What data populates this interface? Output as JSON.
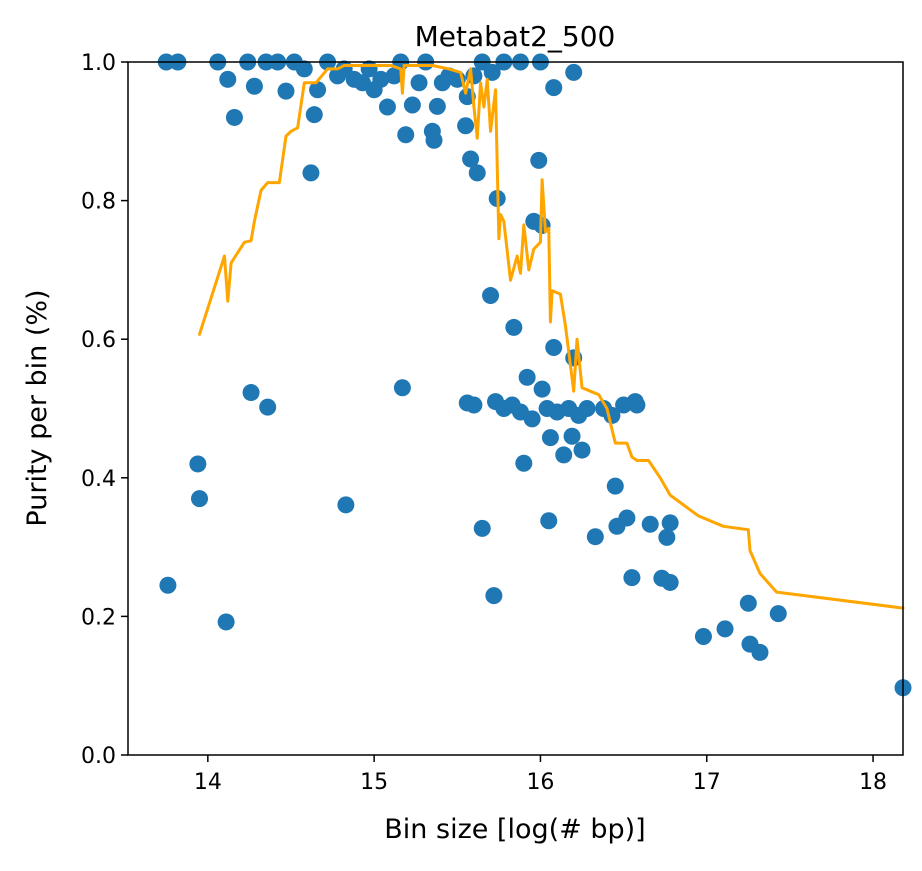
{
  "chart_data": {
    "type": "scatter",
    "title": "Metabat2_500",
    "xlabel": "Bin size [log(# bp)]",
    "ylabel": "Purity per bin (%)",
    "xlim": [
      13.52,
      18.18
    ],
    "ylim": [
      0.0,
      1.0
    ],
    "xticks": [
      14,
      15,
      16,
      17,
      18
    ],
    "xtick_labels": [
      "14",
      "15",
      "16",
      "17",
      "18"
    ],
    "yticks": [
      0.0,
      0.2,
      0.4,
      0.6,
      0.8,
      1.0
    ],
    "ytick_labels": [
      "0.0",
      "0.2",
      "0.4",
      "0.6",
      "0.8",
      "1.0"
    ],
    "grid": false,
    "legend": "none",
    "colors": {
      "points": "#1f77b4",
      "line": "#ffa500"
    },
    "series": [
      {
        "type": "scatter",
        "points": [
          {
            "x": 13.75,
            "y": 1.0
          },
          {
            "x": 13.82,
            "y": 1.0
          },
          {
            "x": 14.06,
            "y": 1.0
          },
          {
            "x": 14.12,
            "y": 0.975
          },
          {
            "x": 14.16,
            "y": 0.92
          },
          {
            "x": 14.24,
            "y": 1.0
          },
          {
            "x": 14.28,
            "y": 0.965
          },
          {
            "x": 14.35,
            "y": 1.0
          },
          {
            "x": 14.42,
            "y": 1.0
          },
          {
            "x": 14.47,
            "y": 0.958
          },
          {
            "x": 14.52,
            "y": 1.0
          },
          {
            "x": 14.58,
            "y": 0.99
          },
          {
            "x": 14.62,
            "y": 0.84
          },
          {
            "x": 14.64,
            "y": 0.924
          },
          {
            "x": 14.66,
            "y": 0.96
          },
          {
            "x": 14.72,
            "y": 1.0
          },
          {
            "x": 14.78,
            "y": 0.98
          },
          {
            "x": 14.82,
            "y": 0.99
          },
          {
            "x": 14.88,
            "y": 0.975
          },
          {
            "x": 14.93,
            "y": 0.97
          },
          {
            "x": 14.97,
            "y": 0.99
          },
          {
            "x": 15.0,
            "y": 0.96
          },
          {
            "x": 15.04,
            "y": 0.975
          },
          {
            "x": 15.08,
            "y": 0.935
          },
          {
            "x": 15.12,
            "y": 0.98
          },
          {
            "x": 15.16,
            "y": 1.0
          },
          {
            "x": 15.19,
            "y": 0.895
          },
          {
            "x": 15.23,
            "y": 0.938
          },
          {
            "x": 15.27,
            "y": 0.97
          },
          {
            "x": 15.31,
            "y": 1.0
          },
          {
            "x": 15.35,
            "y": 0.9
          },
          {
            "x": 15.36,
            "y": 0.887
          },
          {
            "x": 15.38,
            "y": 0.936
          },
          {
            "x": 15.41,
            "y": 0.97
          },
          {
            "x": 15.45,
            "y": 0.98
          },
          {
            "x": 15.5,
            "y": 0.975
          },
          {
            "x": 15.55,
            "y": 0.908
          },
          {
            "x": 15.56,
            "y": 0.95
          },
          {
            "x": 15.58,
            "y": 0.86
          },
          {
            "x": 15.62,
            "y": 0.84
          },
          {
            "x": 15.6,
            "y": 0.98
          },
          {
            "x": 15.65,
            "y": 1.0
          },
          {
            "x": 15.71,
            "y": 0.985
          },
          {
            "x": 15.74,
            "y": 0.803
          },
          {
            "x": 15.78,
            "y": 1.0
          },
          {
            "x": 15.88,
            "y": 1.0
          },
          {
            "x": 15.96,
            "y": 0.77
          },
          {
            "x": 15.99,
            "y": 0.858
          },
          {
            "x": 16.01,
            "y": 0.764
          },
          {
            "x": 16.0,
            "y": 1.0
          },
          {
            "x": 16.08,
            "y": 0.963
          },
          {
            "x": 16.2,
            "y": 0.985
          },
          {
            "x": 15.7,
            "y": 0.663
          },
          {
            "x": 15.84,
            "y": 0.617
          },
          {
            "x": 16.08,
            "y": 0.588
          },
          {
            "x": 16.2,
            "y": 0.573
          },
          {
            "x": 15.92,
            "y": 0.545
          },
          {
            "x": 16.01,
            "y": 0.528
          },
          {
            "x": 16.04,
            "y": 0.5
          },
          {
            "x": 15.73,
            "y": 0.51
          },
          {
            "x": 15.78,
            "y": 0.5
          },
          {
            "x": 15.83,
            "y": 0.505
          },
          {
            "x": 15.88,
            "y": 0.495
          },
          {
            "x": 15.95,
            "y": 0.485
          },
          {
            "x": 16.1,
            "y": 0.495
          },
          {
            "x": 16.17,
            "y": 0.5
          },
          {
            "x": 16.23,
            "y": 0.49
          },
          {
            "x": 16.28,
            "y": 0.5
          },
          {
            "x": 16.38,
            "y": 0.5
          },
          {
            "x": 16.43,
            "y": 0.49
          },
          {
            "x": 16.5,
            "y": 0.505
          },
          {
            "x": 16.57,
            "y": 0.51
          },
          {
            "x": 16.58,
            "y": 0.505
          },
          {
            "x": 15.56,
            "y": 0.508
          },
          {
            "x": 15.6,
            "y": 0.505
          },
          {
            "x": 16.06,
            "y": 0.458
          },
          {
            "x": 16.19,
            "y": 0.46
          },
          {
            "x": 16.14,
            "y": 0.433
          },
          {
            "x": 16.25,
            "y": 0.44
          },
          {
            "x": 15.9,
            "y": 0.421
          },
          {
            "x": 16.45,
            "y": 0.388
          },
          {
            "x": 16.05,
            "y": 0.338
          },
          {
            "x": 16.33,
            "y": 0.315
          },
          {
            "x": 16.46,
            "y": 0.33
          },
          {
            "x": 16.52,
            "y": 0.342
          },
          {
            "x": 16.66,
            "y": 0.333
          },
          {
            "x": 16.78,
            "y": 0.335
          },
          {
            "x": 16.76,
            "y": 0.314
          },
          {
            "x": 16.55,
            "y": 0.256
          },
          {
            "x": 16.73,
            "y": 0.255
          },
          {
            "x": 16.78,
            "y": 0.249
          },
          {
            "x": 15.65,
            "y": 0.327
          },
          {
            "x": 15.72,
            "y": 0.23
          },
          {
            "x": 16.98,
            "y": 0.171
          },
          {
            "x": 17.11,
            "y": 0.182
          },
          {
            "x": 17.25,
            "y": 0.219
          },
          {
            "x": 17.26,
            "y": 0.16
          },
          {
            "x": 17.32,
            "y": 0.148
          },
          {
            "x": 17.43,
            "y": 0.204
          },
          {
            "x": 18.18,
            "y": 0.097
          },
          {
            "x": 13.76,
            "y": 0.245
          },
          {
            "x": 13.94,
            "y": 0.42
          },
          {
            "x": 13.95,
            "y": 0.37
          },
          {
            "x": 14.11,
            "y": 0.192
          },
          {
            "x": 14.26,
            "y": 0.523
          },
          {
            "x": 14.36,
            "y": 0.502
          },
          {
            "x": 14.83,
            "y": 0.361
          },
          {
            "x": 15.17,
            "y": 0.53
          }
        ]
      },
      {
        "type": "line",
        "points": [
          {
            "x": 13.95,
            "y": 0.607
          },
          {
            "x": 14.1,
            "y": 0.72
          },
          {
            "x": 14.12,
            "y": 0.655
          },
          {
            "x": 14.14,
            "y": 0.71
          },
          {
            "x": 14.22,
            "y": 0.74
          },
          {
            "x": 14.26,
            "y": 0.742
          },
          {
            "x": 14.28,
            "y": 0.77
          },
          {
            "x": 14.32,
            "y": 0.815
          },
          {
            "x": 14.36,
            "y": 0.826
          },
          {
            "x": 14.43,
            "y": 0.826
          },
          {
            "x": 14.47,
            "y": 0.893
          },
          {
            "x": 14.5,
            "y": 0.9
          },
          {
            "x": 14.54,
            "y": 0.905
          },
          {
            "x": 14.58,
            "y": 0.97
          },
          {
            "x": 14.65,
            "y": 0.97
          },
          {
            "x": 14.72,
            "y": 0.99
          },
          {
            "x": 14.78,
            "y": 0.99
          },
          {
            "x": 14.82,
            "y": 0.995
          },
          {
            "x": 15.0,
            "y": 0.995
          },
          {
            "x": 15.1,
            "y": 0.995
          },
          {
            "x": 15.16,
            "y": 0.99
          },
          {
            "x": 15.17,
            "y": 0.955
          },
          {
            "x": 15.18,
            "y": 0.995
          },
          {
            "x": 15.35,
            "y": 0.995
          },
          {
            "x": 15.45,
            "y": 0.99
          },
          {
            "x": 15.52,
            "y": 0.985
          },
          {
            "x": 15.55,
            "y": 0.955
          },
          {
            "x": 15.58,
            "y": 0.99
          },
          {
            "x": 15.6,
            "y": 0.935
          },
          {
            "x": 15.62,
            "y": 0.89
          },
          {
            "x": 15.64,
            "y": 0.97
          },
          {
            "x": 15.66,
            "y": 0.935
          },
          {
            "x": 15.68,
            "y": 0.975
          },
          {
            "x": 15.7,
            "y": 0.9
          },
          {
            "x": 15.73,
            "y": 0.96
          },
          {
            "x": 15.75,
            "y": 0.745
          },
          {
            "x": 15.76,
            "y": 0.78
          },
          {
            "x": 15.78,
            "y": 0.77
          },
          {
            "x": 15.82,
            "y": 0.685
          },
          {
            "x": 15.86,
            "y": 0.72
          },
          {
            "x": 15.88,
            "y": 0.695
          },
          {
            "x": 15.9,
            "y": 0.765
          },
          {
            "x": 15.93,
            "y": 0.7
          },
          {
            "x": 15.96,
            "y": 0.73
          },
          {
            "x": 16.0,
            "y": 0.74
          },
          {
            "x": 16.01,
            "y": 0.83
          },
          {
            "x": 16.03,
            "y": 0.755
          },
          {
            "x": 16.05,
            "y": 0.76
          },
          {
            "x": 16.06,
            "y": 0.625
          },
          {
            "x": 16.07,
            "y": 0.67
          },
          {
            "x": 16.12,
            "y": 0.665
          },
          {
            "x": 16.15,
            "y": 0.62
          },
          {
            "x": 16.2,
            "y": 0.525
          },
          {
            "x": 16.22,
            "y": 0.6
          },
          {
            "x": 16.25,
            "y": 0.53
          },
          {
            "x": 16.3,
            "y": 0.525
          },
          {
            "x": 16.35,
            "y": 0.52
          },
          {
            "x": 16.4,
            "y": 0.5
          },
          {
            "x": 16.45,
            "y": 0.45
          },
          {
            "x": 16.52,
            "y": 0.45
          },
          {
            "x": 16.55,
            "y": 0.43
          },
          {
            "x": 16.58,
            "y": 0.425
          },
          {
            "x": 16.65,
            "y": 0.425
          },
          {
            "x": 16.72,
            "y": 0.4
          },
          {
            "x": 16.78,
            "y": 0.375
          },
          {
            "x": 16.95,
            "y": 0.345
          },
          {
            "x": 17.1,
            "y": 0.33
          },
          {
            "x": 17.25,
            "y": 0.325
          },
          {
            "x": 17.26,
            "y": 0.295
          },
          {
            "x": 17.32,
            "y": 0.262
          },
          {
            "x": 17.42,
            "y": 0.235
          },
          {
            "x": 18.18,
            "y": 0.212
          }
        ]
      }
    ]
  }
}
